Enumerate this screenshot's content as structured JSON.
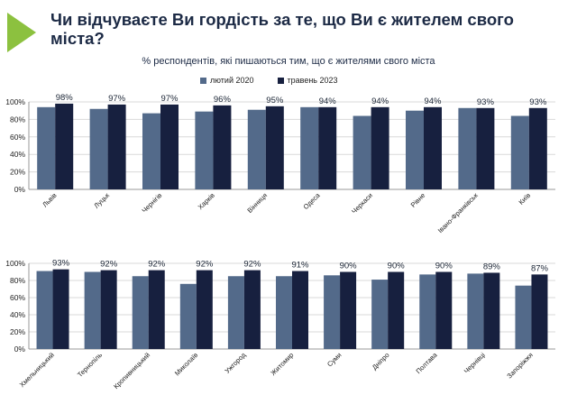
{
  "title": "Чи відчуваєте Ви гордість за те, що Ви є жителем свого міста?",
  "subtitle": "% респондентів, які пишаються тим, що є жителями свого міста",
  "colors": {
    "feb2020": "#536a8a",
    "may2023": "#17203f",
    "accent": "#8cc13f",
    "grid": "#d9d9d9"
  },
  "chart_data": [
    {
      "type": "bar",
      "ylim": [
        0,
        100
      ],
      "yticks": [
        "0%",
        "20%",
        "40%",
        "60%",
        "80%",
        "100%"
      ],
      "legend": [
        "лютий 2020",
        "травень 2023"
      ],
      "categories": [
        "Львів",
        "Луцьк",
        "Чернігів",
        "Харків",
        "Вінниця",
        "Одеса",
        "Черкаси",
        "Рівне",
        "Івано-Франківськ",
        "Київ"
      ],
      "series": [
        {
          "name": "лютий 2020",
          "values": [
            94,
            92,
            87,
            89,
            91,
            94,
            84,
            90,
            93,
            84
          ]
        },
        {
          "name": "травень 2023",
          "values": [
            98,
            97,
            97,
            96,
            95,
            94,
            94,
            94,
            93,
            93
          ]
        }
      ],
      "data_labels": [
        "98%",
        "97%",
        "97%",
        "96%",
        "95%",
        "94%",
        "94%",
        "94%",
        "93%",
        "93%"
      ]
    },
    {
      "type": "bar",
      "ylim": [
        0,
        100
      ],
      "yticks": [
        "0%",
        "20%",
        "40%",
        "60%",
        "80%",
        "100%"
      ],
      "categories": [
        "Хмельницький",
        "Тернопіль",
        "Кропивницький",
        "Миколаїв",
        "Ужгород",
        "Житомир",
        "Суми",
        "Дніпро",
        "Полтава",
        "Чернівці",
        "Запоріжжя"
      ],
      "series": [
        {
          "name": "лютий 2020",
          "values": [
            91,
            90,
            85,
            76,
            85,
            85,
            86,
            81,
            87,
            88,
            74
          ]
        },
        {
          "name": "травень 2023",
          "values": [
            93,
            92,
            92,
            92,
            92,
            91,
            90,
            90,
            90,
            89,
            87
          ]
        }
      ],
      "data_labels": [
        "93%",
        "92%",
        "92%",
        "92%",
        "92%",
        "91%",
        "90%",
        "90%",
        "90%",
        "89%",
        "87%"
      ]
    }
  ]
}
